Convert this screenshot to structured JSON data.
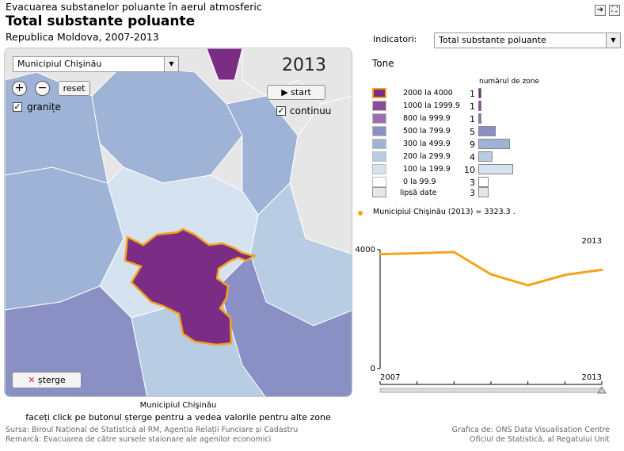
{
  "header": {
    "top_title": "Evacuarea substanelor poluante în aerul atmosferic",
    "main_title": "Total substante poluante",
    "subtitle": "Republica Moldova, 2007-2013"
  },
  "window_buttons": {
    "export_icon": "arrow-right-icon",
    "fullscreen_icon": "fullscreen-icon"
  },
  "map": {
    "region_select": "Municipiul Chişinău",
    "zoom_in": "+",
    "zoom_out": "−",
    "reset_label": "reset",
    "borders_label": "granițe",
    "borders_checked": true,
    "year": "2013",
    "start_label": "start",
    "continuous_label": "continuu",
    "continuous_checked": true,
    "clear_label": "șterge",
    "selected_region_caption": "Municipiul Chişinău",
    "highlight_color": "#f5a31a",
    "selected_fill": "#7b2d85"
  },
  "indicators": {
    "label": "Indicatori:",
    "selected": "Total substante poluante"
  },
  "legend": {
    "unit": "Tone",
    "count_header": "numărul de zone",
    "missing_label": "lipsă date",
    "missing_count": "3",
    "classes": [
      {
        "label": "2000 la 4000",
        "count": 1,
        "color": "#7b2d85"
      },
      {
        "label": "1000 la 1999.9",
        "count": 1,
        "color": "#8e4c98"
      },
      {
        "label": "800 la 999.9",
        "count": 1,
        "color": "#9a6dae"
      },
      {
        "label": "500 la 799.9",
        "count": 5,
        "color": "#8b90c4"
      },
      {
        "label": "300 la 499.9",
        "count": 9,
        "color": "#9fb3d6"
      },
      {
        "label": "200 la 299.9",
        "count": 4,
        "color": "#b8cce3"
      },
      {
        "label": "100 la 199.9",
        "count": 10,
        "color": "#d5e2ef"
      },
      {
        "label": "0 la 99.9",
        "count": 3,
        "color": "#ffffff"
      }
    ],
    "missing_color": "#e6e6e6"
  },
  "readout": "Municipiul Chişinău (2013) = 3323.3 .",
  "instruction": "faceți click pe butonul șterge pentru a vedea valorile pentru alte zone",
  "source": "Sursa: Biroul Național de Statistică al RM, Agenția Relații Funciare și Cadastru",
  "note": "Remarcă: Evacuarea de către sursele staionare ale agenilor economici",
  "credit_line1": "Grafica de: ONS Data Visualisation Centre",
  "credit_line2": "Oficiul de Statistică, al Regatului Unit",
  "chart_data": {
    "type": "line",
    "x": [
      2007,
      2008,
      2009,
      2010,
      2011,
      2012,
      2013
    ],
    "values": [
      3850,
      3880,
      3920,
      3170,
      2800,
      3150,
      3323.3
    ],
    "ylim": [
      0,
      4000
    ],
    "yticks": [
      "0",
      "4000"
    ],
    "xlim": [
      2007,
      2013
    ],
    "xtick_labels": [
      "2007",
      "2013"
    ],
    "current_year_label": "2013",
    "line_color": "#f5a31a"
  }
}
